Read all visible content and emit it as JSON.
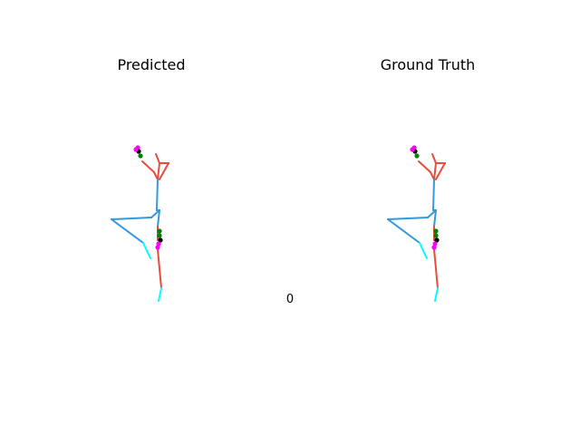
{
  "panels": [
    {
      "title": "Predicted"
    },
    {
      "title": "Ground Truth"
    }
  ],
  "frame_label": "0",
  "colors": {
    "right_limb": "#e74c3c",
    "left_limb": "#3498db",
    "extremity": "#00ffff",
    "hand_tip": "#ff00ff",
    "hand_mid": "#000000",
    "hand_base": "#008000"
  }
}
